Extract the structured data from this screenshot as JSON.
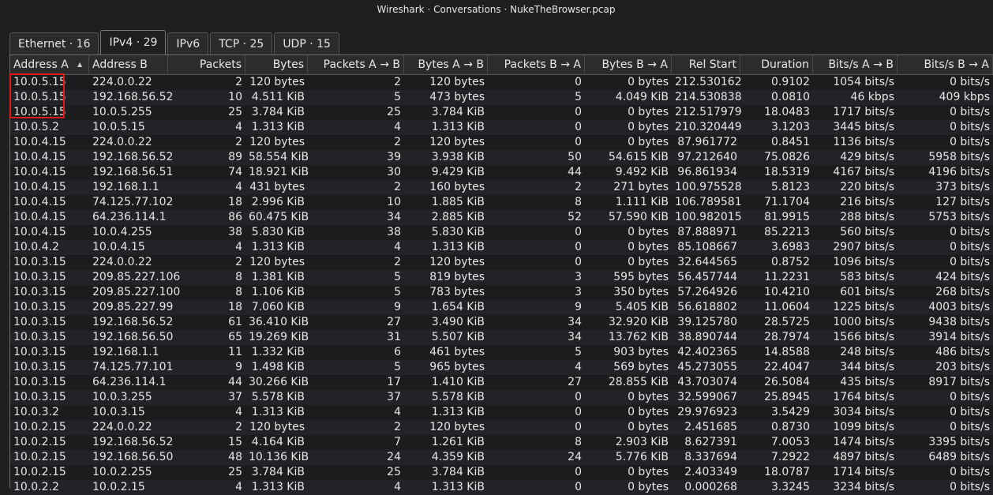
{
  "window": {
    "title": "Wireshark · Conversations · NukeTheBrowser.pcap"
  },
  "tabs": [
    {
      "label": "Ethernet · 16",
      "active": false
    },
    {
      "label": "IPv4 · 29",
      "active": true
    },
    {
      "label": "IPv6",
      "active": false
    },
    {
      "label": "TCP · 25",
      "active": false
    },
    {
      "label": "UDP · 15",
      "active": false
    }
  ],
  "table": {
    "sort_icon": "sort-ascending-icon",
    "columns": [
      "Address A",
      "Address B",
      "Packets",
      "Bytes",
      "Packets A → B",
      "Bytes A → B",
      "Packets B → A",
      "Bytes B → A",
      "Rel Start",
      "Duration",
      "Bits/s A → B",
      "Bits/s B → A"
    ],
    "rows": [
      [
        "10.0.5.15",
        "224.0.0.22",
        "2",
        "120 bytes",
        "2",
        "120 bytes",
        "0",
        "0 bytes",
        "212.530162",
        "0.9102",
        "1054 bits/s",
        "0 bits/s"
      ],
      [
        "10.0.5.15",
        "192.168.56.52",
        "10",
        "4.511 KiB",
        "5",
        "473 bytes",
        "5",
        "4.049 KiB",
        "214.530838",
        "0.0810",
        "46 kbps",
        "409 kbps"
      ],
      [
        "10.0.5.15",
        "10.0.5.255",
        "25",
        "3.784 KiB",
        "25",
        "3.784 KiB",
        "0",
        "0 bytes",
        "212.517979",
        "18.0483",
        "1717 bits/s",
        "0 bits/s"
      ],
      [
        "10.0.5.2",
        "10.0.5.15",
        "4",
        "1.313 KiB",
        "4",
        "1.313 KiB",
        "0",
        "0 bytes",
        "210.320449",
        "3.1203",
        "3445 bits/s",
        "0 bits/s"
      ],
      [
        "10.0.4.15",
        "224.0.0.22",
        "2",
        "120 bytes",
        "2",
        "120 bytes",
        "0",
        "0 bytes",
        "87.961772",
        "0.8451",
        "1136 bits/s",
        "0 bits/s"
      ],
      [
        "10.0.4.15",
        "192.168.56.52",
        "89",
        "58.554 KiB",
        "39",
        "3.938 KiB",
        "50",
        "54.615 KiB",
        "97.212640",
        "75.0826",
        "429 bits/s",
        "5958 bits/s"
      ],
      [
        "10.0.4.15",
        "192.168.56.51",
        "74",
        "18.921 KiB",
        "30",
        "9.429 KiB",
        "44",
        "9.492 KiB",
        "96.861934",
        "18.5319",
        "4167 bits/s",
        "4196 bits/s"
      ],
      [
        "10.0.4.15",
        "192.168.1.1",
        "4",
        "431 bytes",
        "2",
        "160 bytes",
        "2",
        "271 bytes",
        "100.975528",
        "5.8123",
        "220 bits/s",
        "373 bits/s"
      ],
      [
        "10.0.4.15",
        "74.125.77.102",
        "18",
        "2.996 KiB",
        "10",
        "1.885 KiB",
        "8",
        "1.111 KiB",
        "106.789581",
        "71.1704",
        "216 bits/s",
        "127 bits/s"
      ],
      [
        "10.0.4.15",
        "64.236.114.1",
        "86",
        "60.475 KiB",
        "34",
        "2.885 KiB",
        "52",
        "57.590 KiB",
        "100.982015",
        "81.9915",
        "288 bits/s",
        "5753 bits/s"
      ],
      [
        "10.0.4.15",
        "10.0.4.255",
        "38",
        "5.830 KiB",
        "38",
        "5.830 KiB",
        "0",
        "0 bytes",
        "87.888971",
        "85.2213",
        "560 bits/s",
        "0 bits/s"
      ],
      [
        "10.0.4.2",
        "10.0.4.15",
        "4",
        "1.313 KiB",
        "4",
        "1.313 KiB",
        "0",
        "0 bytes",
        "85.108667",
        "3.6983",
        "2907 bits/s",
        "0 bits/s"
      ],
      [
        "10.0.3.15",
        "224.0.0.22",
        "2",
        "120 bytes",
        "2",
        "120 bytes",
        "0",
        "0 bytes",
        "32.644565",
        "0.8752",
        "1096 bits/s",
        "0 bits/s"
      ],
      [
        "10.0.3.15",
        "209.85.227.106",
        "8",
        "1.381 KiB",
        "5",
        "819 bytes",
        "3",
        "595 bytes",
        "56.457744",
        "11.2231",
        "583 bits/s",
        "424 bits/s"
      ],
      [
        "10.0.3.15",
        "209.85.227.100",
        "8",
        "1.106 KiB",
        "5",
        "783 bytes",
        "3",
        "350 bytes",
        "57.264926",
        "10.4210",
        "601 bits/s",
        "268 bits/s"
      ],
      [
        "10.0.3.15",
        "209.85.227.99",
        "18",
        "7.060 KiB",
        "9",
        "1.654 KiB",
        "9",
        "5.405 KiB",
        "56.618802",
        "11.0604",
        "1225 bits/s",
        "4003 bits/s"
      ],
      [
        "10.0.3.15",
        "192.168.56.52",
        "61",
        "36.410 KiB",
        "27",
        "3.490 KiB",
        "34",
        "32.920 KiB",
        "39.125780",
        "28.5725",
        "1000 bits/s",
        "9438 bits/s"
      ],
      [
        "10.0.3.15",
        "192.168.56.50",
        "65",
        "19.269 KiB",
        "31",
        "5.507 KiB",
        "34",
        "13.762 KiB",
        "38.890744",
        "28.7974",
        "1566 bits/s",
        "3914 bits/s"
      ],
      [
        "10.0.3.15",
        "192.168.1.1",
        "11",
        "1.332 KiB",
        "6",
        "461 bytes",
        "5",
        "903 bytes",
        "42.402365",
        "14.8588",
        "248 bits/s",
        "486 bits/s"
      ],
      [
        "10.0.3.15",
        "74.125.77.101",
        "9",
        "1.498 KiB",
        "5",
        "965 bytes",
        "4",
        "569 bytes",
        "45.273055",
        "22.4047",
        "344 bits/s",
        "203 bits/s"
      ],
      [
        "10.0.3.15",
        "64.236.114.1",
        "44",
        "30.266 KiB",
        "17",
        "1.410 KiB",
        "27",
        "28.855 KiB",
        "43.703074",
        "26.5084",
        "435 bits/s",
        "8917 bits/s"
      ],
      [
        "10.0.3.15",
        "10.0.3.255",
        "37",
        "5.578 KiB",
        "37",
        "5.578 KiB",
        "0",
        "0 bytes",
        "32.599067",
        "25.8945",
        "1764 bits/s",
        "0 bits/s"
      ],
      [
        "10.0.3.2",
        "10.0.3.15",
        "4",
        "1.313 KiB",
        "4",
        "1.313 KiB",
        "0",
        "0 bytes",
        "29.976923",
        "3.5429",
        "3034 bits/s",
        "0 bits/s"
      ],
      [
        "10.0.2.15",
        "224.0.0.22",
        "2",
        "120 bytes",
        "2",
        "120 bytes",
        "0",
        "0 bytes",
        "2.451685",
        "0.8730",
        "1099 bits/s",
        "0 bits/s"
      ],
      [
        "10.0.2.15",
        "192.168.56.52",
        "15",
        "4.164 KiB",
        "7",
        "1.261 KiB",
        "8",
        "2.903 KiB",
        "8.627391",
        "7.0053",
        "1474 bits/s",
        "3395 bits/s"
      ],
      [
        "10.0.2.15",
        "192.168.56.50",
        "48",
        "10.136 KiB",
        "24",
        "4.359 KiB",
        "24",
        "5.776 KiB",
        "8.337694",
        "7.2922",
        "4897 bits/s",
        "6489 bits/s"
      ],
      [
        "10.0.2.15",
        "10.0.2.255",
        "25",
        "3.784 KiB",
        "25",
        "3.784 KiB",
        "0",
        "0 bytes",
        "2.403349",
        "18.0787",
        "1714 bits/s",
        "0 bits/s"
      ],
      [
        "10.0.2.2",
        "10.0.2.15",
        "4",
        "1.313 KiB",
        "4",
        "1.313 KiB",
        "0",
        "0 bytes",
        "0.000268",
        "3.3245",
        "3234 bits/s",
        "0 bits/s"
      ]
    ]
  },
  "colors": {
    "highlight": "#e0191b",
    "background": "#1e1f21"
  }
}
